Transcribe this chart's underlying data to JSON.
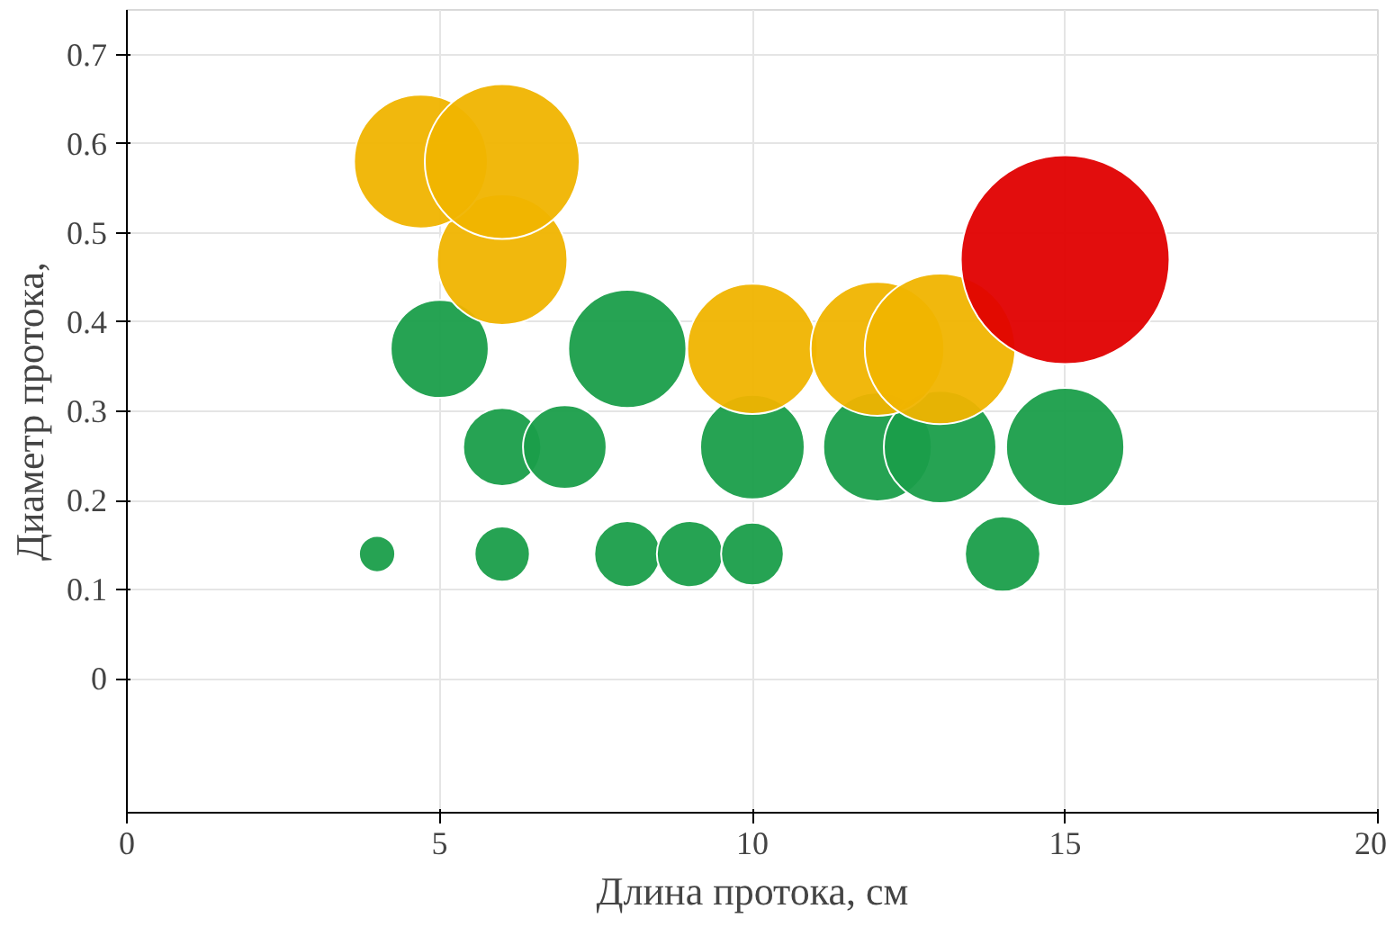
{
  "chart_data": {
    "type": "bubble",
    "xlabel": "Длина протока, см",
    "ylabel": "Диаметр протока,",
    "xlim": [
      0,
      20
    ],
    "xticks": [
      0,
      5,
      10,
      15,
      20
    ],
    "ylim": [
      -0.15,
      0.75
    ],
    "yticks": [
      0,
      0.1,
      0.2,
      0.3,
      0.4,
      0.5,
      0.6,
      0.7
    ],
    "grid": true,
    "series": [
      {
        "color": "#1a9e4a",
        "x": [
          4,
          6,
          8,
          9,
          10,
          14,
          6,
          7,
          10,
          12,
          13,
          15,
          5,
          8
        ],
        "values": [
          0.14,
          0.14,
          0.14,
          0.14,
          0.14,
          0.14,
          0.26,
          0.26,
          0.26,
          0.26,
          0.26,
          0.26,
          0.37,
          0.37
        ],
        "sizes": [
          0.03,
          0.07,
          0.1,
          0.1,
          0.09,
          0.13,
          0.14,
          0.16,
          0.25,
          0.27,
          0.29,
          0.32,
          0.22,
          0.32
        ]
      },
      {
        "color": "#f0b400",
        "x": [
          10,
          12,
          13,
          6,
          4.7,
          6
        ],
        "values": [
          0.37,
          0.37,
          0.37,
          0.47,
          0.58,
          0.58
        ],
        "sizes": [
          0.39,
          0.41,
          0.52,
          0.39,
          0.41,
          0.55
        ]
      },
      {
        "color": "#e00000",
        "x": [
          15
        ],
        "values": [
          0.47
        ],
        "sizes": [
          1
        ]
      }
    ]
  }
}
